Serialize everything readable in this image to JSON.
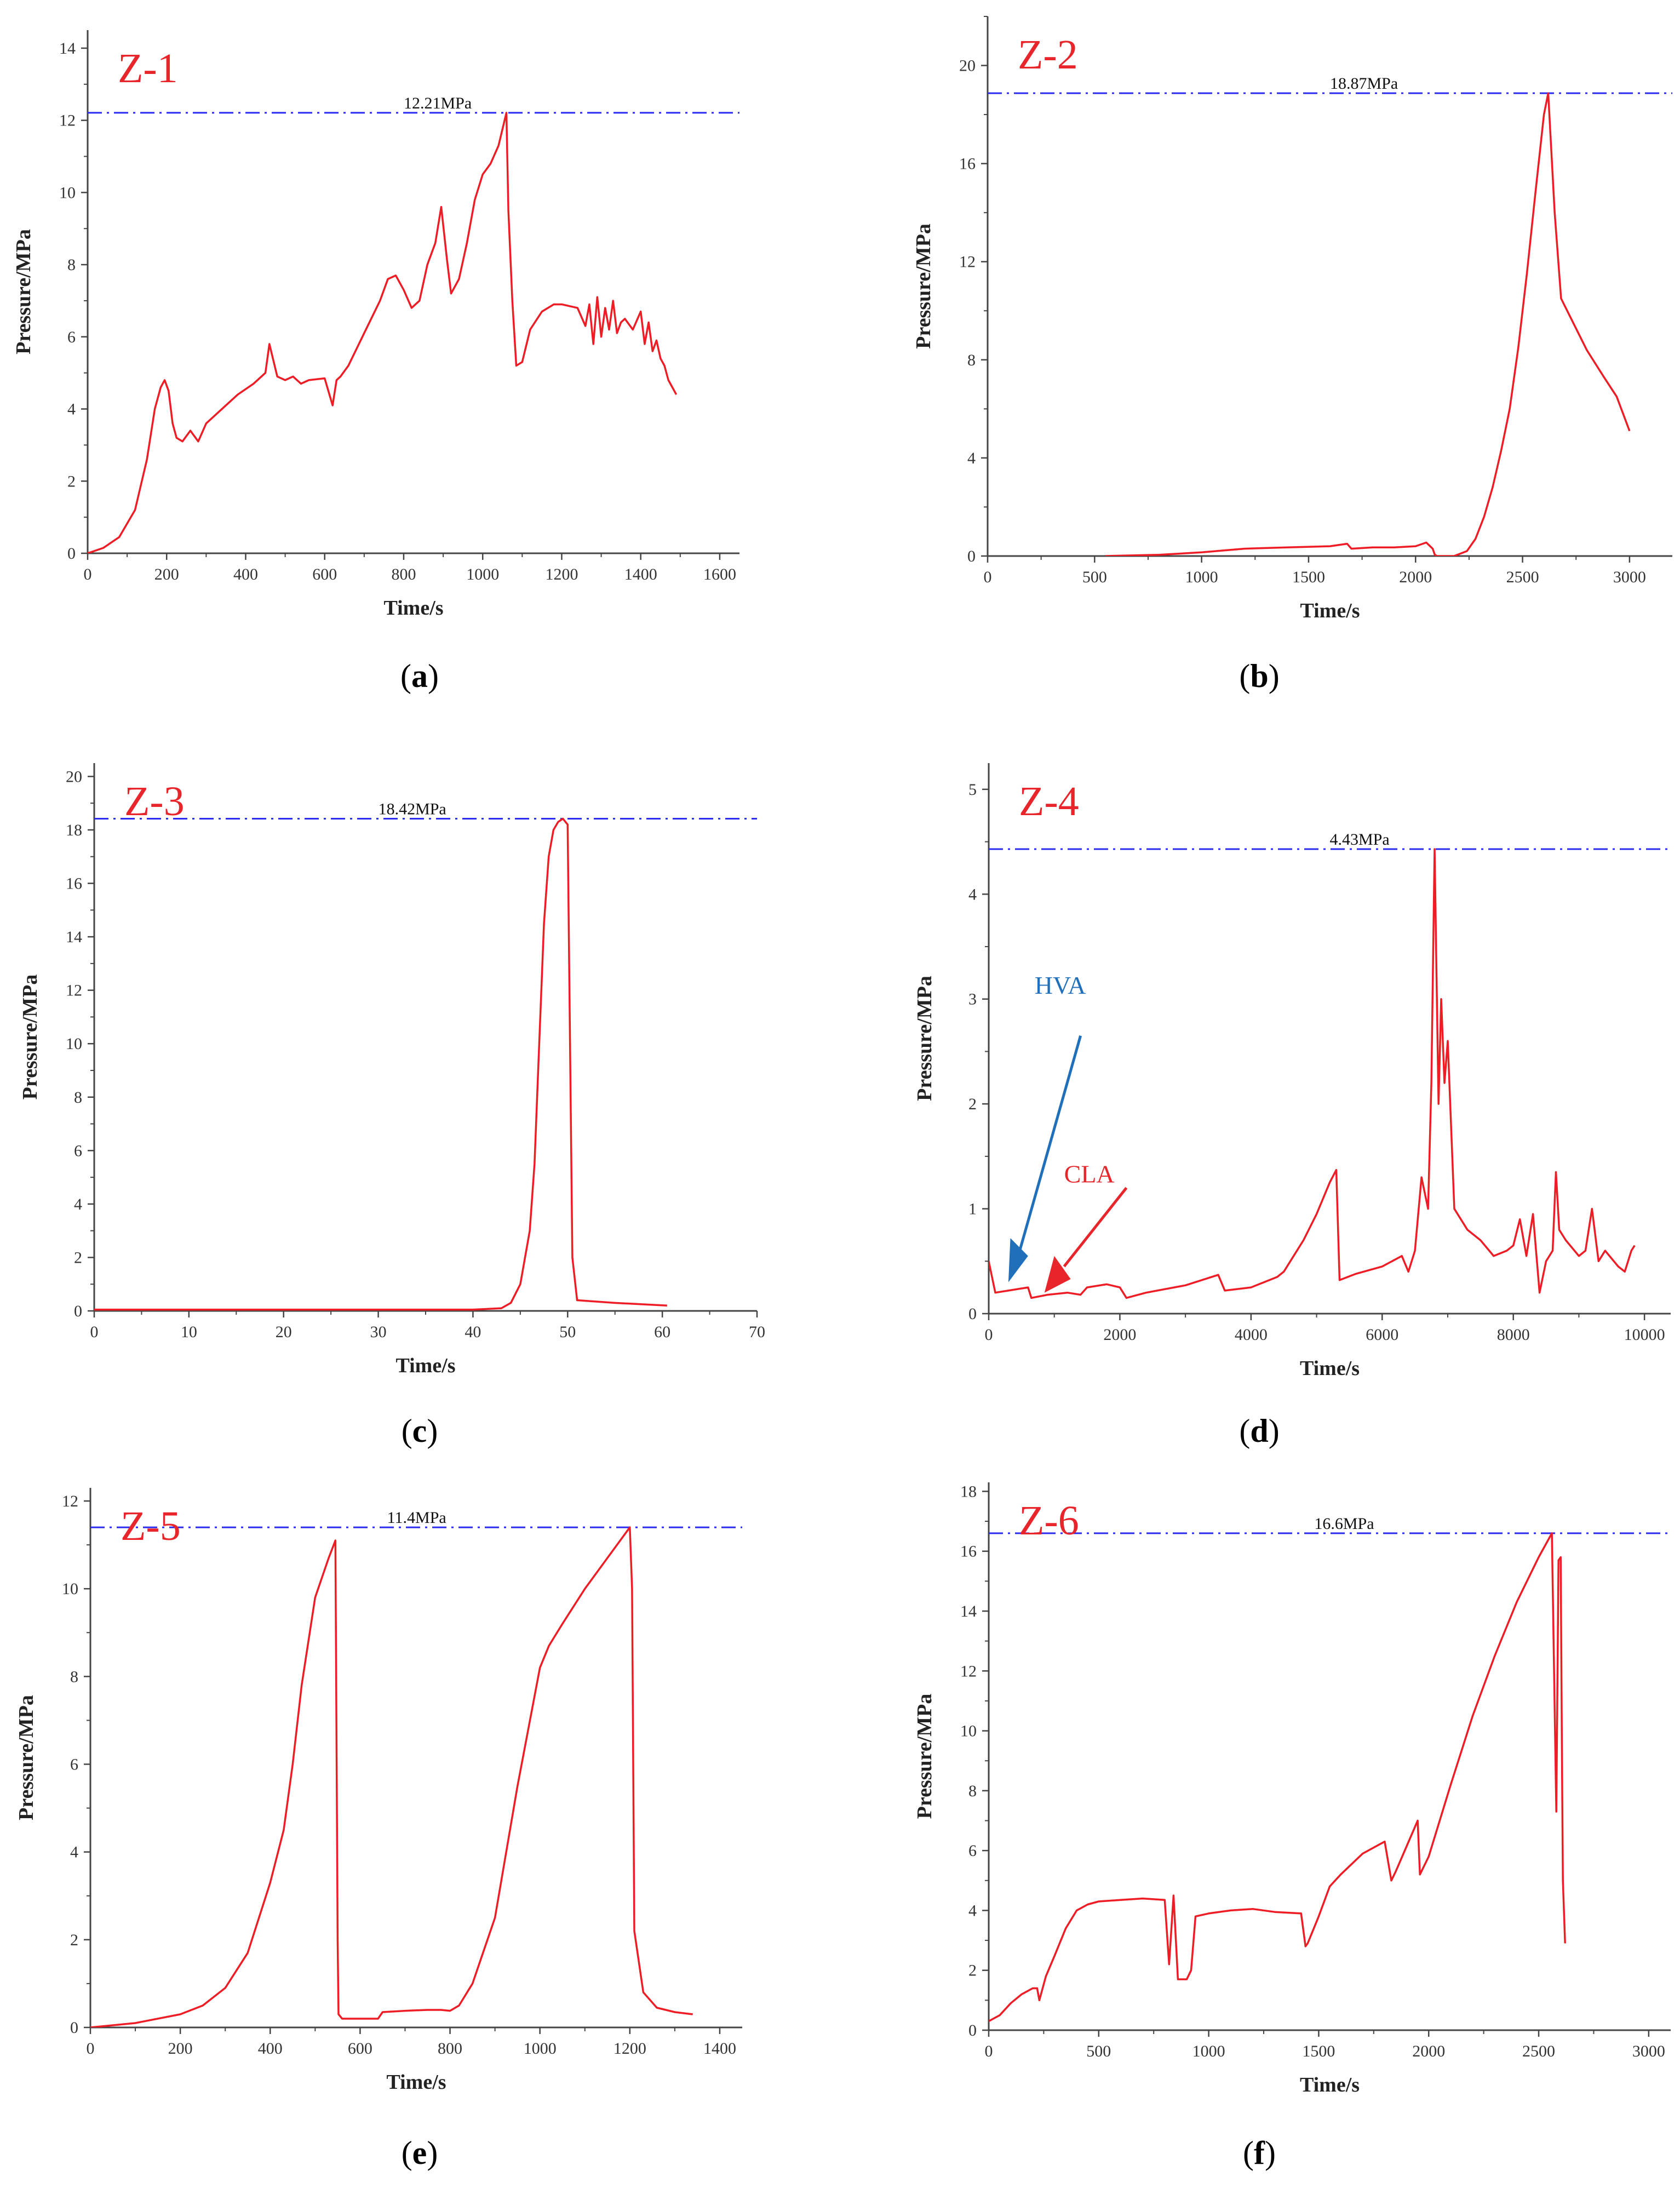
{
  "chart_data": [
    {
      "type": "line",
      "panel": "a",
      "caption": "a",
      "title": "Z-1",
      "xlabel": "Time/s",
      "ylabel": "Pressure/MPa",
      "xlim": [
        0,
        1650
      ],
      "ylim": [
        0,
        14.5
      ],
      "xticks": [
        0,
        200,
        400,
        600,
        800,
        1000,
        1200,
        1400,
        1600
      ],
      "yticks": [
        0,
        2,
        4,
        6,
        8,
        10,
        12,
        14
      ],
      "peak_label": "12.21MPa",
      "peak_value": 12.21,
      "peak_label_x": 800,
      "series": [
        {
          "name": "Pressure",
          "x": [
            0,
            40,
            80,
            120,
            150,
            170,
            185,
            195,
            205,
            215,
            225,
            240,
            260,
            280,
            300,
            340,
            380,
            420,
            450,
            460,
            480,
            500,
            520,
            540,
            560,
            600,
            620,
            630,
            640,
            660,
            700,
            740,
            760,
            780,
            800,
            820,
            840,
            860,
            880,
            895,
            910,
            920,
            940,
            960,
            980,
            1000,
            1020,
            1040,
            1060,
            1065,
            1075,
            1085,
            1100,
            1120,
            1150,
            1180,
            1200,
            1240,
            1260,
            1270,
            1280,
            1290,
            1300,
            1310,
            1320,
            1330,
            1340,
            1350,
            1360,
            1380,
            1400,
            1410,
            1420,
            1430,
            1440,
            1450,
            1460,
            1470,
            1480,
            1490
          ],
          "y": [
            0.0,
            0.15,
            0.45,
            1.2,
            2.6,
            4.0,
            4.6,
            4.8,
            4.5,
            3.6,
            3.2,
            3.1,
            3.4,
            3.1,
            3.6,
            4.0,
            4.4,
            4.7,
            5.0,
            5.8,
            4.9,
            4.8,
            4.9,
            4.7,
            4.8,
            4.85,
            4.1,
            4.8,
            4.9,
            5.2,
            6.1,
            7.0,
            7.6,
            7.7,
            7.3,
            6.8,
            7.0,
            8.0,
            8.6,
            9.6,
            8.1,
            7.2,
            7.6,
            8.6,
            9.8,
            10.5,
            10.8,
            11.3,
            12.21,
            9.5,
            7.0,
            5.2,
            5.3,
            6.2,
            6.7,
            6.9,
            6.9,
            6.8,
            6.3,
            6.9,
            5.8,
            7.1,
            6.0,
            6.8,
            6.2,
            7.0,
            6.1,
            6.4,
            6.5,
            6.2,
            6.7,
            5.8,
            6.4,
            5.6,
            5.9,
            5.4,
            5.2,
            4.8,
            4.6,
            4.4
          ]
        }
      ]
    },
    {
      "type": "line",
      "panel": "b",
      "caption": "b",
      "title": "Z-2",
      "xlabel": "Time/s",
      "ylabel": "Pressure/MPa",
      "xlim": [
        0,
        3200
      ],
      "ylim": [
        0,
        22
      ],
      "xticks": [
        0,
        500,
        1000,
        1500,
        2000,
        2500,
        3000
      ],
      "yticks": [
        0,
        4,
        8,
        12,
        16,
        20
      ],
      "peak_label": "18.87MPa",
      "peak_value": 18.87,
      "peak_label_x": 1600,
      "series": [
        {
          "name": "Pressure",
          "x": [
            550,
            800,
            1000,
            1200,
            1400,
            1600,
            1680,
            1700,
            1800,
            1900,
            2000,
            2050,
            2080,
            2090,
            2100,
            2180,
            2240,
            2280,
            2320,
            2360,
            2400,
            2440,
            2480,
            2520,
            2560,
            2600,
            2620,
            2650,
            2680,
            2720,
            2800,
            2880,
            2940,
            3000
          ],
          "y": [
            0.0,
            0.05,
            0.15,
            0.3,
            0.35,
            0.4,
            0.5,
            0.3,
            0.35,
            0.35,
            0.4,
            0.55,
            0.3,
            0.05,
            0.0,
            0.0,
            0.2,
            0.7,
            1.6,
            2.8,
            4.3,
            6.0,
            8.5,
            11.5,
            14.8,
            18.0,
            18.87,
            14.0,
            10.5,
            9.8,
            8.4,
            7.3,
            6.5,
            5.1
          ]
        }
      ]
    },
    {
      "type": "line",
      "panel": "c",
      "caption": "c",
      "title": "Z-3",
      "xlabel": "Time/s",
      "ylabel": "Pressure/MPa",
      "xlim": [
        0,
        70
      ],
      "ylim": [
        0,
        20.5
      ],
      "xticks": [
        0,
        10,
        20,
        30,
        40,
        50,
        60,
        70
      ],
      "yticks": [
        0,
        2,
        4,
        6,
        8,
        10,
        12,
        14,
        16,
        18,
        20
      ],
      "peak_label": "18.42MPa",
      "peak_value": 18.42,
      "peak_label_x": 30,
      "series": [
        {
          "name": "Pressure",
          "x": [
            0,
            10,
            20,
            30,
            40,
            43,
            44,
            45,
            46,
            46.5,
            47,
            47.5,
            48,
            48.5,
            49,
            49.5,
            50,
            50.5,
            51,
            55,
            60.5
          ],
          "y": [
            0.05,
            0.05,
            0.05,
            0.05,
            0.05,
            0.1,
            0.3,
            1.0,
            3.0,
            5.5,
            10.0,
            14.5,
            17.0,
            18.0,
            18.3,
            18.42,
            18.2,
            2.0,
            0.4,
            0.3,
            0.2
          ]
        }
      ]
    },
    {
      "type": "line",
      "panel": "d",
      "caption": "d",
      "title": "Z-4",
      "xlabel": "Time/s",
      "ylabel": "Pressure/MPa",
      "xlim": [
        0,
        10400
      ],
      "ylim": [
        0,
        5.25
      ],
      "xticks": [
        0,
        2000,
        4000,
        6000,
        8000,
        10000
      ],
      "yticks": [
        0,
        1,
        2,
        3,
        4,
        5
      ],
      "peak_label": "4.43MPa",
      "peak_value": 4.43,
      "peak_label_x": 5200,
      "annotations": [
        {
          "text": "HVA",
          "color": "#1f6fba"
        },
        {
          "text": "CLA",
          "color": "#e8252b"
        }
      ],
      "series": [
        {
          "name": "Pressure",
          "x": [
            0,
            100,
            300,
            600,
            650,
            900,
            1200,
            1400,
            1500,
            1800,
            2000,
            2100,
            2400,
            3000,
            3500,
            3600,
            4000,
            4400,
            4500,
            4800,
            5000,
            5200,
            5300,
            5350,
            5600,
            6000,
            6300,
            6400,
            6500,
            6600,
            6700,
            6750,
            6800,
            6830,
            6860,
            6900,
            6950,
            7000,
            7100,
            7300,
            7500,
            7700,
            7900,
            8000,
            8100,
            8200,
            8300,
            8400,
            8500,
            8600,
            8650,
            8700,
            8800,
            9000,
            9100,
            9200,
            9300,
            9400,
            9600,
            9700,
            9800,
            9850
          ],
          "y": [
            0.5,
            0.2,
            0.22,
            0.25,
            0.15,
            0.18,
            0.2,
            0.18,
            0.25,
            0.28,
            0.25,
            0.15,
            0.2,
            0.27,
            0.37,
            0.22,
            0.25,
            0.35,
            0.4,
            0.7,
            0.95,
            1.25,
            1.37,
            0.32,
            0.38,
            0.45,
            0.55,
            0.4,
            0.6,
            1.3,
            1.0,
            2.2,
            4.43,
            3.2,
            2.0,
            3.0,
            2.2,
            2.6,
            1.0,
            0.8,
            0.7,
            0.55,
            0.6,
            0.65,
            0.9,
            0.55,
            0.95,
            0.2,
            0.5,
            0.6,
            1.35,
            0.8,
            0.7,
            0.55,
            0.6,
            1.0,
            0.5,
            0.6,
            0.45,
            0.4,
            0.6,
            0.65
          ]
        }
      ]
    },
    {
      "type": "line",
      "panel": "e",
      "caption": "e",
      "title": "Z-5",
      "xlabel": "Time/s",
      "ylabel": "Pressure/MPa",
      "xlim": [
        0,
        1450
      ],
      "ylim": [
        0,
        12.3
      ],
      "xticks": [
        0,
        200,
        400,
        600,
        800,
        1000,
        1200,
        1400
      ],
      "yticks": [
        0,
        2,
        4,
        6,
        8,
        10,
        12
      ],
      "peak_label": "11.4MPa",
      "peak_value": 11.4,
      "peak_label_x": 660,
      "series": [
        {
          "name": "Pressure",
          "x": [
            0,
            100,
            200,
            250,
            300,
            350,
            400,
            430,
            450,
            470,
            500,
            530,
            545,
            550,
            552,
            560,
            600,
            640,
            650,
            700,
            750,
            780,
            800,
            820,
            850,
            900,
            950,
            1000,
            1020,
            1050,
            1100,
            1150,
            1200,
            1205,
            1210,
            1230,
            1260,
            1300,
            1340
          ],
          "y": [
            0.0,
            0.1,
            0.3,
            0.5,
            0.9,
            1.7,
            3.3,
            4.5,
            6.0,
            7.8,
            9.8,
            10.7,
            11.1,
            2.0,
            0.3,
            0.2,
            0.2,
            0.2,
            0.35,
            0.38,
            0.4,
            0.4,
            0.38,
            0.5,
            1.0,
            2.5,
            5.5,
            8.2,
            8.7,
            9.2,
            10.0,
            10.7,
            11.4,
            10.0,
            2.2,
            0.8,
            0.45,
            0.35,
            0.3
          ]
        }
      ]
    },
    {
      "type": "line",
      "panel": "f",
      "caption": "f",
      "title": "Z-6",
      "xlabel": "Time/s",
      "ylabel": "Pressure/MPa",
      "xlim": [
        0,
        3100
      ],
      "ylim": [
        0,
        18.3
      ],
      "xticks": [
        0,
        500,
        1000,
        1500,
        2000,
        2500,
        3000
      ],
      "yticks": [
        0,
        2,
        4,
        6,
        8,
        10,
        12,
        14,
        16,
        18
      ],
      "peak_label": "16.6MPa",
      "peak_value": 16.6,
      "peak_label_x": 1480,
      "series": [
        {
          "name": "Pressure",
          "x": [
            0,
            50,
            100,
            150,
            200,
            220,
            230,
            260,
            300,
            350,
            400,
            450,
            500,
            600,
            700,
            800,
            820,
            840,
            860,
            900,
            920,
            940,
            1000,
            1100,
            1200,
            1300,
            1420,
            1440,
            1450,
            1500,
            1550,
            1600,
            1700,
            1800,
            1830,
            1850,
            1950,
            1960,
            2000,
            2100,
            2200,
            2300,
            2400,
            2500,
            2560,
            2580,
            2590,
            2600,
            2605,
            2610,
            2620
          ],
          "y": [
            0.3,
            0.5,
            0.9,
            1.2,
            1.4,
            1.4,
            1.0,
            1.8,
            2.5,
            3.4,
            4.0,
            4.2,
            4.3,
            4.35,
            4.4,
            4.35,
            2.2,
            4.5,
            1.7,
            1.7,
            2.0,
            3.8,
            3.9,
            4.0,
            4.05,
            3.95,
            3.9,
            2.8,
            2.9,
            3.8,
            4.8,
            5.2,
            5.9,
            6.3,
            5.0,
            5.3,
            7.0,
            5.2,
            5.8,
            8.2,
            10.5,
            12.5,
            14.3,
            15.8,
            16.6,
            7.3,
            15.7,
            15.8,
            10.0,
            5.0,
            2.9
          ]
        }
      ]
    }
  ]
}
